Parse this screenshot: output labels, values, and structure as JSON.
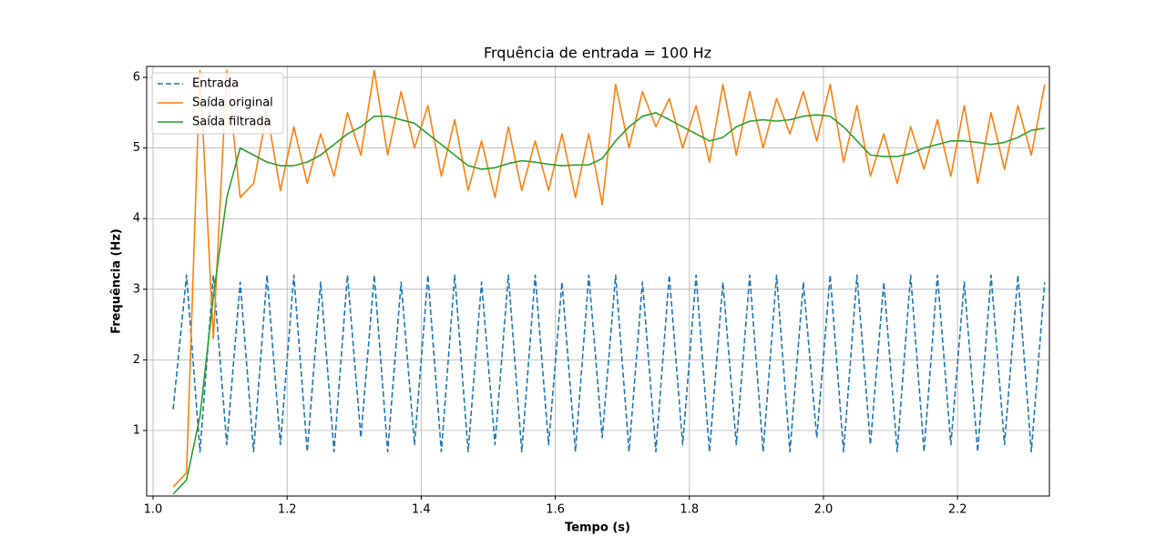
{
  "chart_data": {
    "type": "line",
    "title": "Frquência de entrada = 100 Hz",
    "xlabel": "Tempo (s)",
    "ylabel": "Frequência (Hz)",
    "x": [
      1.03,
      1.05,
      1.07,
      1.09,
      1.11,
      1.13,
      1.15,
      1.17,
      1.19,
      1.21,
      1.23,
      1.25,
      1.27,
      1.29,
      1.31,
      1.33,
      1.35,
      1.37,
      1.39,
      1.41,
      1.43,
      1.45,
      1.47,
      1.49,
      1.51,
      1.53,
      1.55,
      1.57,
      1.59,
      1.61,
      1.63,
      1.65,
      1.67,
      1.69,
      1.71,
      1.73,
      1.75,
      1.77,
      1.79,
      1.81,
      1.83,
      1.85,
      1.87,
      1.89,
      1.91,
      1.93,
      1.95,
      1.97,
      1.99,
      2.01,
      2.03,
      2.05,
      2.07,
      2.09,
      2.11,
      2.13,
      2.15,
      2.17,
      2.19,
      2.21,
      2.23,
      2.25,
      2.27,
      2.29,
      2.31,
      2.33
    ],
    "series": [
      {
        "name": "Entrada",
        "color": "#1f77b4",
        "linestyle": "dashed",
        "values": [
          1.3,
          3.2,
          0.7,
          3.2,
          0.8,
          3.1,
          0.7,
          3.2,
          0.8,
          3.2,
          0.7,
          3.1,
          0.7,
          3.2,
          0.9,
          3.2,
          0.7,
          3.1,
          0.8,
          3.2,
          0.7,
          3.2,
          0.7,
          3.1,
          0.8,
          3.2,
          0.7,
          3.2,
          0.8,
          3.1,
          0.7,
          3.2,
          0.9,
          3.2,
          0.7,
          3.1,
          0.7,
          3.2,
          0.8,
          3.2,
          0.7,
          3.1,
          0.8,
          3.2,
          0.7,
          3.2,
          0.7,
          3.1,
          0.9,
          3.2,
          0.7,
          3.2,
          0.8,
          3.1,
          0.7,
          3.2,
          0.7,
          3.2,
          0.8,
          3.1,
          0.7,
          3.2,
          0.8,
          3.2,
          0.7,
          3.1
        ]
      },
      {
        "name": "Saída original",
        "color": "#ff7f0e",
        "linestyle": "solid",
        "values": [
          0.2,
          0.4,
          6.1,
          2.3,
          6.1,
          4.3,
          4.5,
          5.5,
          4.4,
          5.3,
          4.5,
          5.2,
          4.6,
          5.5,
          4.9,
          6.1,
          4.9,
          5.8,
          5.0,
          5.6,
          4.6,
          5.4,
          4.4,
          5.1,
          4.3,
          5.3,
          4.4,
          5.1,
          4.4,
          5.2,
          4.3,
          5.2,
          4.2,
          5.9,
          5.0,
          5.8,
          5.3,
          5.7,
          5.0,
          5.6,
          4.8,
          5.9,
          4.9,
          5.8,
          5.0,
          5.7,
          5.2,
          5.8,
          5.1,
          5.9,
          4.8,
          5.6,
          4.6,
          5.2,
          4.5,
          5.3,
          4.7,
          5.4,
          4.6,
          5.6,
          4.5,
          5.5,
          4.7,
          5.6,
          4.9,
          5.9
        ]
      },
      {
        "name": "Saída filtrada",
        "color": "#2ca02c",
        "linestyle": "solid",
        "values": [
          0.1,
          0.3,
          1.2,
          2.9,
          4.3,
          5.0,
          4.9,
          4.8,
          4.75,
          4.75,
          4.8,
          4.9,
          5.05,
          5.2,
          5.3,
          5.45,
          5.45,
          5.4,
          5.35,
          5.2,
          5.05,
          4.9,
          4.75,
          4.7,
          4.72,
          4.78,
          4.82,
          4.8,
          4.77,
          4.75,
          4.76,
          4.76,
          4.85,
          5.1,
          5.3,
          5.45,
          5.5,
          5.4,
          5.3,
          5.2,
          5.1,
          5.15,
          5.3,
          5.38,
          5.4,
          5.38,
          5.4,
          5.45,
          5.47,
          5.45,
          5.3,
          5.1,
          4.9,
          4.88,
          4.88,
          4.92,
          5.0,
          5.05,
          5.1,
          5.1,
          5.08,
          5.05,
          5.08,
          5.15,
          5.25,
          5.28
        ]
      }
    ],
    "xlim": [
      0.9905,
      2.337
    ],
    "ylim": [
      0.072,
      6.155
    ],
    "xticks": [
      {
        "value": 1,
        "label": "1.0"
      },
      1.2,
      1.4,
      1.6,
      1.8,
      {
        "value": 2,
        "label": "2.0"
      },
      2.2
    ],
    "yticks": [
      1,
      2,
      3,
      4,
      5,
      6
    ],
    "grid": true,
    "legend": "upper left"
  }
}
